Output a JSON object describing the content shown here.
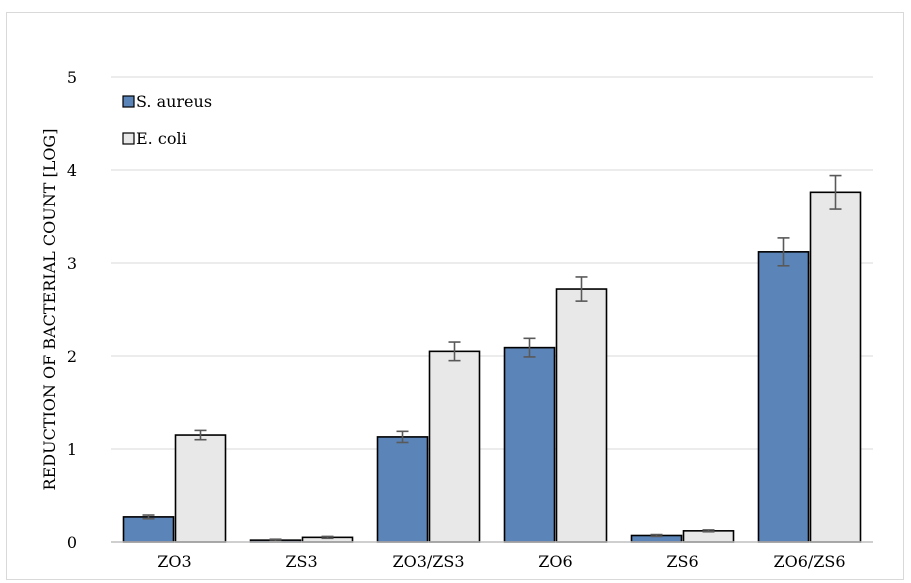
{
  "chart_data": {
    "type": "bar",
    "title": "",
    "xlabel": "",
    "ylabel": "REDUCTION OF BACTERIAL COUNT [LOG]",
    "ylim": [
      0,
      5
    ],
    "yticks": [
      0,
      1,
      2,
      3,
      4,
      5
    ],
    "grid": "horizontal",
    "legend_position": "top-left",
    "categories": [
      "ZO3",
      "ZS3",
      "ZO3/ZS3",
      "ZO6",
      "ZS6",
      "ZO6/ZS6"
    ],
    "series": [
      {
        "name": "S. aureus",
        "color": "#5b84b8",
        "values": [
          0.27,
          0.02,
          1.13,
          2.09,
          0.07,
          3.12
        ],
        "errors": [
          0.02,
          0.01,
          0.06,
          0.1,
          0.01,
          0.15
        ]
      },
      {
        "name": "E. coli",
        "color": "#e8e8e8",
        "values": [
          1.15,
          0.05,
          2.05,
          2.72,
          0.12,
          3.76
        ],
        "errors": [
          0.05,
          0.01,
          0.1,
          0.13,
          0.01,
          0.18
        ]
      }
    ]
  }
}
